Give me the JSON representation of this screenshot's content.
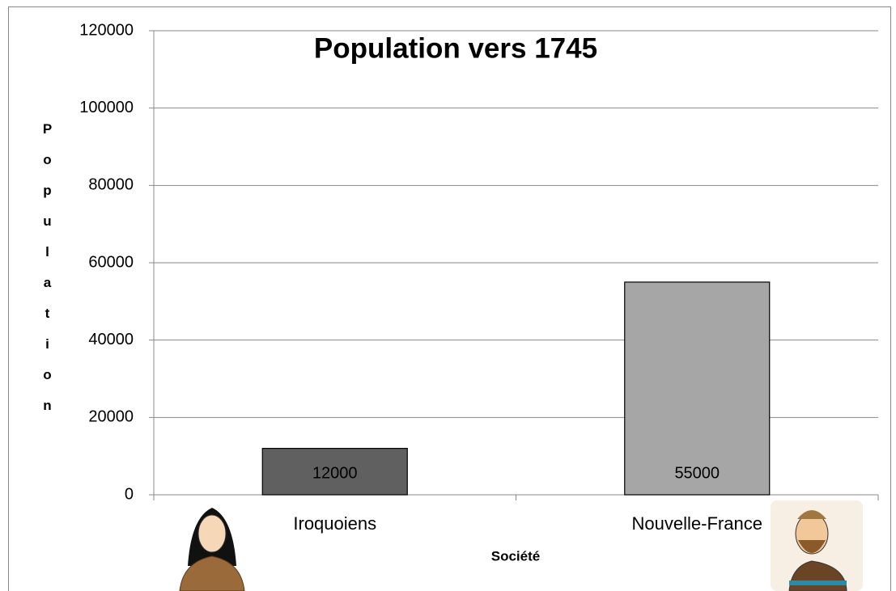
{
  "chart_data": {
    "type": "bar",
    "title": "Population vers 1745",
    "categories": [
      "Iroquoiens",
      "Nouvelle-France"
    ],
    "series": [
      {
        "name": "Population",
        "colors": [
          "#606060",
          "#a6a6a6"
        ],
        "values": [
          12000,
          55000
        ]
      }
    ],
    "x_label": "Société",
    "y_label": "Population",
    "ylim": [
      0,
      120000
    ],
    "yticks": [
      0,
      20000,
      40000,
      60000,
      80000,
      100000,
      120000
    ],
    "grid": true
  }
}
